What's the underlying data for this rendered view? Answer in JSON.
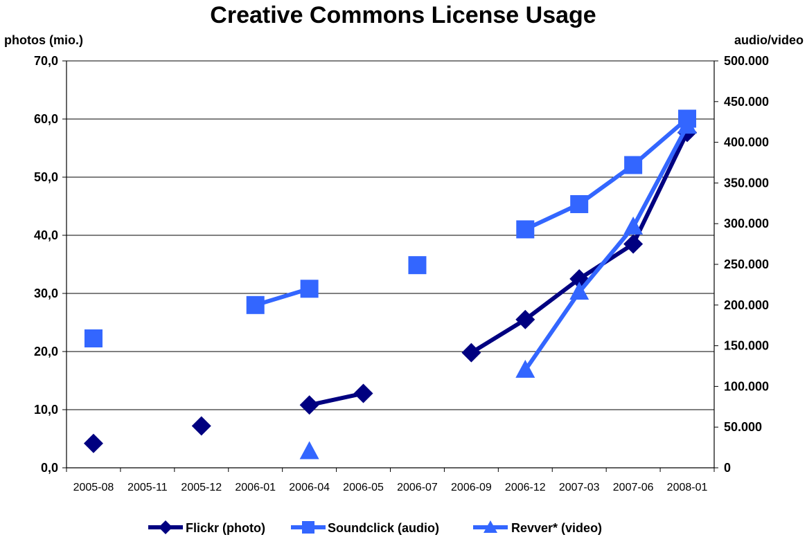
{
  "chart_data": {
    "type": "line",
    "title": "Creative Commons License Usage",
    "ylabel_left": "photos (mio.)",
    "ylabel_right": "audio/video",
    "categories": [
      "2005-08",
      "2005-11",
      "2005-12",
      "2006-01",
      "2006-04",
      "2006-05",
      "2006-07",
      "2006-09",
      "2006-12",
      "2007-03",
      "2007-06",
      "2008-01"
    ],
    "y_left": {
      "range": [
        0,
        70
      ],
      "ticks": [
        0,
        10,
        20,
        30,
        40,
        50,
        60,
        70
      ],
      "tick_labels": [
        "0,0",
        "10,0",
        "20,0",
        "30,0",
        "40,0",
        "50,0",
        "60,0",
        "70,0"
      ]
    },
    "y_right": {
      "range": [
        0,
        500000
      ],
      "ticks": [
        0,
        50000,
        100000,
        150000,
        200000,
        250000,
        300000,
        350000,
        400000,
        450000,
        500000
      ],
      "tick_labels": [
        "0",
        "50.000",
        "100.000",
        "150.000",
        "200.000",
        "250.000",
        "300.000",
        "350.000",
        "400.000",
        "450.000",
        "500.000"
      ]
    },
    "gridlines": "horizontal",
    "legend_position": "bottom",
    "series": [
      {
        "name": "Flickr (photo)",
        "axis": "left",
        "marker": "diamond",
        "color": "#000080",
        "x": [
          0.5,
          2.5,
          4.5,
          5.5,
          7.5,
          8.5,
          9.5,
          10.5,
          11.5
        ],
        "values": [
          4.2,
          7.2,
          10.8,
          12.8,
          19.8,
          25.5,
          32.5,
          38.5,
          57.7
        ]
      },
      {
        "name": "Soundclick (audio)",
        "axis": "right",
        "marker": "square",
        "color": "#3366FF",
        "x": [
          0.5,
          3.5,
          4.5,
          6.5,
          8.5,
          9.5,
          10.5,
          11.5
        ],
        "values": [
          159000,
          200000,
          220000,
          249000,
          293000,
          324000,
          372000,
          429000
        ]
      },
      {
        "name": "Revver* (video)",
        "axis": "right",
        "marker": "triangle",
        "color": "#3366FF",
        "x": [
          4.5,
          8.5,
          9.5,
          10.5,
          11.5
        ],
        "values": [
          20000,
          120000,
          216000,
          296000,
          420000
        ]
      }
    ]
  }
}
